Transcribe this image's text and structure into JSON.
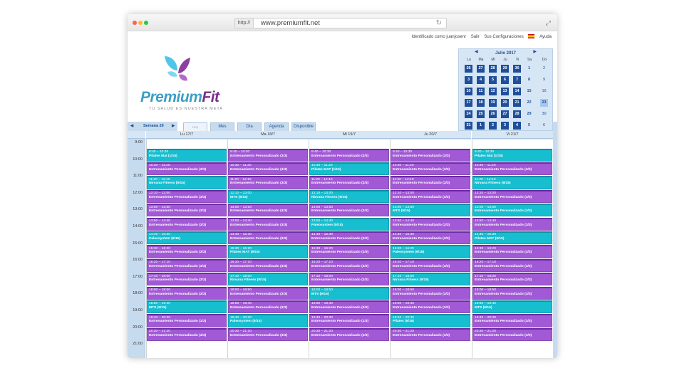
{
  "browser": {
    "protocol": "http://",
    "url": "www.premiumfit.net"
  },
  "toplinks": {
    "identified": "Identificado como juanjosenr",
    "logout": "Salir",
    "settings": "Sus Configuraciones",
    "help": "Ayuda"
  },
  "logo": {
    "brand_a": "Premium",
    "brand_b": "Fit",
    "tagline": "TU SALUD ES NUESTRA META"
  },
  "colors": {
    "purple": "#a259d6",
    "cyan": "#16bed0",
    "calendar_blue": "#1f4f9a"
  },
  "minical": {
    "title": "Julio 2017",
    "dow": [
      "Lu",
      "Ma",
      "Mi",
      "Ju",
      "Vi",
      "Sa",
      "Do"
    ],
    "weeks": [
      [
        "26",
        "27",
        "28",
        "29",
        "30",
        "1",
        "2"
      ],
      [
        "3",
        "4",
        "5",
        "6",
        "7",
        "8",
        "9"
      ],
      [
        "10",
        "11",
        "12",
        "13",
        "14",
        "15",
        "16"
      ],
      [
        "17",
        "18",
        "19",
        "20",
        "21",
        "22",
        "23"
      ],
      [
        "24",
        "25",
        "26",
        "27",
        "28",
        "29",
        "30"
      ],
      [
        "31",
        "1",
        "2",
        "3",
        "4",
        "5",
        "6"
      ]
    ]
  },
  "tabs": {
    "week": "Semana 29",
    "now": "Hoy",
    "month": "Mes",
    "day": "Día",
    "agenda": "Agenda",
    "available": "Disponible"
  },
  "days": [
    "Lu 17/7",
    "Ma 18/7",
    "Mi 19/7",
    "Ju 20/7",
    "Vi 21/7"
  ],
  "hours": [
    "9:00",
    "10:00",
    "11:00",
    "12:00",
    "13:00",
    "14:00",
    "15:00",
    "16:00",
    "17:00",
    "18:00",
    "19:00",
    "20:00",
    "21:00"
  ],
  "events": [
    [
      {
        "time": "9:40 – 10:30",
        "name": "Pilates Mat (1/15)",
        "color": "cyan"
      },
      {
        "time": "10:30 – 11:20",
        "name": "Entrenamiento Personalizado (3/3)",
        "color": "purple"
      },
      {
        "time": "11:20 – 12:10",
        "name": "Nirvana Fitness (9/15)",
        "color": "cyan"
      },
      {
        "time": "12:10 – 13:00",
        "name": "Entrenamiento Personalizado (3/3)",
        "color": "purple"
      },
      {
        "time": "13:00 – 13:50",
        "name": "Entrenamiento Personalizado (3/3)",
        "color": "purple"
      },
      {
        "time": "13:50 – 14:40",
        "name": "Entrenamiento Personalizado (3/3)",
        "color": "purple"
      },
      {
        "time": "14:40 – 15:30",
        "name": "Paleosystem (9/15)",
        "color": "cyan"
      },
      {
        "time": "15:30 – 16:20",
        "name": "Entrenamiento Personalizado (3/3)",
        "color": "purple"
      },
      {
        "time": "16:20 – 17:10",
        "name": "Entrenamiento Personalizado (3/3)",
        "color": "purple"
      },
      {
        "time": "17:10 – 18:00",
        "name": "Entrenamiento Personalizado (3/3)",
        "color": "purple"
      },
      {
        "time": "18:00 – 18:50",
        "name": "Entrenamiento Personalizado (3/3)",
        "color": "purple"
      },
      {
        "time": "18:50 – 19:40",
        "name": "MTS (9/15)",
        "color": "cyan"
      },
      {
        "time": "19:40 – 20:30",
        "name": "Entrenamiento Personalizado (1/3)",
        "color": "purple"
      },
      {
        "time": "20:30 – 21:20",
        "name": "Entrenamiento Personalizado (3/3)",
        "color": "purple"
      }
    ],
    [
      {
        "time": "9:40 – 10:30",
        "name": "Entrenamiento Personalizado (3/3)",
        "color": "purple"
      },
      {
        "time": "10:30 – 11:20",
        "name": "Entrenamiento Personalizado (3/3)",
        "color": "purple"
      },
      {
        "time": "11:20 – 12:10",
        "name": "Entrenamiento Personalizado (3/3)",
        "color": "purple"
      },
      {
        "time": "12:10 – 13:00",
        "name": "MTS (9/15)",
        "color": "cyan"
      },
      {
        "time": "13:00 – 13:50",
        "name": "Entrenamiento Personalizado (3/3)",
        "color": "purple"
      },
      {
        "time": "13:50 – 14:40",
        "name": "Entrenamiento Personalizado (3/3)",
        "color": "purple"
      },
      {
        "time": "14:40 – 15:30",
        "name": "Entrenamiento Personalizado (3/3)",
        "color": "purple"
      },
      {
        "time": "15:30 – 16:20",
        "name": "Pilates MAT (9/15)",
        "color": "cyan"
      },
      {
        "time": "16:20 – 17:10",
        "name": "Entrenamiento Personalizado (3/3)",
        "color": "purple"
      },
      {
        "time": "17:10 – 18:00",
        "name": "Nirvana Fitness (9/15)",
        "color": "cyan"
      },
      {
        "time": "18:00 – 18:50",
        "name": "Entrenamiento Personalizado (3/3)",
        "color": "purple"
      },
      {
        "time": "18:50 – 19:40",
        "name": "Entrenamiento Personalizado (3/3)",
        "color": "purple"
      },
      {
        "time": "19:40 – 20:30",
        "name": "Paleosystem (9/15)",
        "color": "cyan"
      },
      {
        "time": "20:30 – 21:20",
        "name": "Entrenamiento Personalizado (3/3)",
        "color": "purple"
      }
    ],
    [
      {
        "time": "9:40 – 10:30",
        "name": "Entrenamiento Personalizado (3/3)",
        "color": "purple"
      },
      {
        "time": "10:30 – 11:20",
        "name": "Pilates MAT (1/15)",
        "color": "cyan"
      },
      {
        "time": "11:20 – 12:10",
        "name": "Entrenamiento Personalizado (3/3)",
        "color": "purple"
      },
      {
        "time": "12:10 – 13:00",
        "name": "Nirvana Fitness (9/15)",
        "color": "cyan"
      },
      {
        "time": "13:00 – 13:50",
        "name": "Entrenamiento Personalizado (3/3)",
        "color": "purple"
      },
      {
        "time": "13:50 – 14:40",
        "name": "Paleosystem (9/15)",
        "color": "cyan"
      },
      {
        "time": "14:40 – 15:30",
        "name": "Entrenamiento Personalizado (3/3)",
        "color": "purple"
      },
      {
        "time": "15:30 – 16:20",
        "name": "Entrenamiento Personalizado (3/3)",
        "color": "purple"
      },
      {
        "time": "16:20 – 17:10",
        "name": "Entrenamiento Personalizado (3/3)",
        "color": "purple"
      },
      {
        "time": "17:10 – 18:00",
        "name": "Entrenamiento Personalizado (3/3)",
        "color": "purple"
      },
      {
        "time": "18:00 – 18:50",
        "name": "MTS (9/15)",
        "color": "cyan"
      },
      {
        "time": "18:50 – 19:40",
        "name": "Entrenamiento Personalizado (3/3)",
        "color": "purple"
      },
      {
        "time": "19:40 – 20:30",
        "name": "Entrenamiento Personalizado (1/3)",
        "color": "purple"
      },
      {
        "time": "20:30 – 21:20",
        "name": "Entrenamiento Personalizado (3/3)",
        "color": "purple"
      }
    ],
    [
      {
        "time": "9:40 – 10:30",
        "name": "Entrenamiento Personalizado (3/3)",
        "color": "purple"
      },
      {
        "time": "10:30 – 11:20",
        "name": "Entrenamiento Personalizado (3/3)",
        "color": "purple"
      },
      {
        "time": "11:20 – 12:10",
        "name": "Entrenamiento Personalizado (3/3)",
        "color": "purple"
      },
      {
        "time": "12:10 – 13:00",
        "name": "Entrenamiento Personalizado (3/3)",
        "color": "purple"
      },
      {
        "time": "13:00 – 13:50",
        "name": "MTS (9/15)",
        "color": "cyan"
      },
      {
        "time": "13:50 – 14:40",
        "name": "Entrenamiento Personalizado (2/3)",
        "color": "purple"
      },
      {
        "time": "14:40 – 15:30",
        "name": "Entrenamiento Personalizado (3/3)",
        "color": "purple"
      },
      {
        "time": "15:30 – 16:20",
        "name": "Paleosystem (9/15)",
        "color": "cyan"
      },
      {
        "time": "16:20 – 17:10",
        "name": "Entrenamiento Personalizado (3/3)",
        "color": "purple"
      },
      {
        "time": "17:10 – 18:00",
        "name": "Nirvana Fitness (9/15)",
        "color": "cyan"
      },
      {
        "time": "18:00 – 18:50",
        "name": "Entrenamiento Personalizado (3/3)",
        "color": "purple"
      },
      {
        "time": "18:50 – 19:40",
        "name": "Entrenamiento Personalizado (3/3)",
        "color": "purple"
      },
      {
        "time": "19:40 – 20:30",
        "name": "Pilates (9/15)",
        "color": "cyan"
      },
      {
        "time": "20:30 – 21:20",
        "name": "Entrenamiento Personalizado (3/3)",
        "color": "purple"
      }
    ],
    [
      {
        "time": "9:40 – 10:30",
        "name": "Pilates Mat (1/15)",
        "color": "cyan"
      },
      {
        "time": "10:30 – 11:20",
        "name": "Entrenamiento Personalizado (3/3)",
        "color": "purple"
      },
      {
        "time": "11:20 – 12:10",
        "name": "Nirvana Fitness (9/15)",
        "color": "cyan"
      },
      {
        "time": "12:10 – 13:00",
        "name": "Entrenamiento Personalizado (3/3)",
        "color": "purple"
      },
      {
        "time": "13:00 – 13:50",
        "name": "Entrenamiento Personalizado (3/3)",
        "color": "cyan"
      },
      {
        "time": "13:50 – 14:40",
        "name": "Entrenamiento Personalizado (3/3)",
        "color": "purple"
      },
      {
        "time": "14:40 – 15:30",
        "name": "Pilates MAT (9/15)",
        "color": "cyan"
      },
      {
        "time": "15:30 – 16:20",
        "name": "Entrenamiento Personalizado (3/3)",
        "color": "purple"
      },
      {
        "time": "16:20 – 17:10",
        "name": "Entrenamiento Personalizado (3/3)",
        "color": "purple"
      },
      {
        "time": "17:10 – 18:00",
        "name": "Entrenamiento Personalizado (3/3)",
        "color": "purple"
      },
      {
        "time": "18:00 – 18:50",
        "name": "Entrenamiento Personalizado (3/3)",
        "color": "purple"
      },
      {
        "time": "18:50 – 19:40",
        "name": "MTS (9/15)",
        "color": "cyan"
      },
      {
        "time": "19:40 – 20:30",
        "name": "Entrenamiento Personalizado (3/3)",
        "color": "purple"
      },
      {
        "time": "20:30 – 21:20",
        "name": "Entrenamiento Personalizado (3/3)",
        "color": "purple"
      }
    ]
  ]
}
